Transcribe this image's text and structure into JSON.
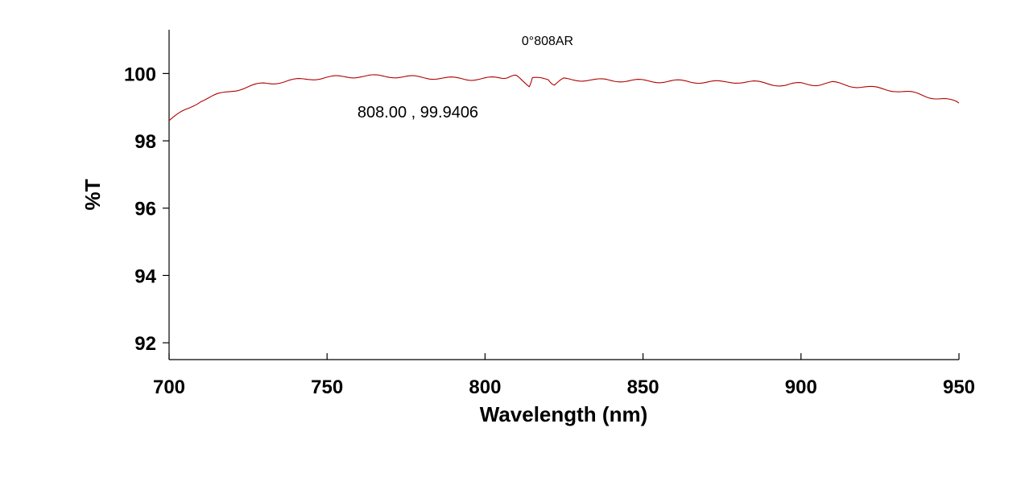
{
  "chart_data": {
    "type": "line",
    "title": "0°808AR",
    "xlabel": "Wavelength (nm)",
    "ylabel": "%T",
    "xlim": [
      700,
      950
    ],
    "ylim": [
      91.5,
      101.3
    ],
    "xticks": [
      700,
      750,
      800,
      850,
      900,
      950
    ],
    "yticks": [
      92,
      94,
      96,
      98,
      100
    ],
    "xtick_labels": [
      "700",
      "750",
      "800",
      "850",
      "900",
      "950"
    ],
    "ytick_labels": [
      "92",
      "94",
      "96",
      "98",
      "100"
    ],
    "grid": false,
    "legend": "none",
    "annotation": "808.00 , 99.9406",
    "series": [
      {
        "color": "#b00000",
        "x": [
          700,
          705,
          710,
          715,
          720,
          725,
          730,
          735,
          740,
          745,
          750,
          755,
          760,
          765,
          770,
          775,
          780,
          785,
          790,
          795,
          800,
          805,
          808,
          810,
          814,
          815,
          820,
          822,
          825,
          830,
          835,
          840,
          845,
          850,
          855,
          860,
          865,
          870,
          875,
          880,
          885,
          890,
          895,
          900,
          905,
          910,
          915,
          920,
          925,
          930,
          935,
          940,
          945,
          950
        ],
        "y": [
          98.6,
          98.9,
          99.2,
          99.35,
          99.5,
          99.6,
          99.7,
          99.75,
          99.8,
          99.85,
          99.88,
          99.9,
          99.92,
          99.92,
          99.92,
          99.9,
          99.88,
          99.87,
          99.85,
          99.84,
          99.85,
          99.86,
          99.94,
          99.9,
          99.65,
          99.85,
          99.82,
          99.68,
          99.83,
          99.82,
          99.8,
          99.8,
          99.79,
          99.78,
          99.77,
          99.77,
          99.76,
          99.75,
          99.74,
          99.76,
          99.74,
          99.7,
          99.65,
          99.7,
          99.68,
          99.72,
          99.65,
          99.6,
          99.55,
          99.5,
          99.42,
          99.32,
          99.25,
          99.12
        ]
      }
    ]
  }
}
